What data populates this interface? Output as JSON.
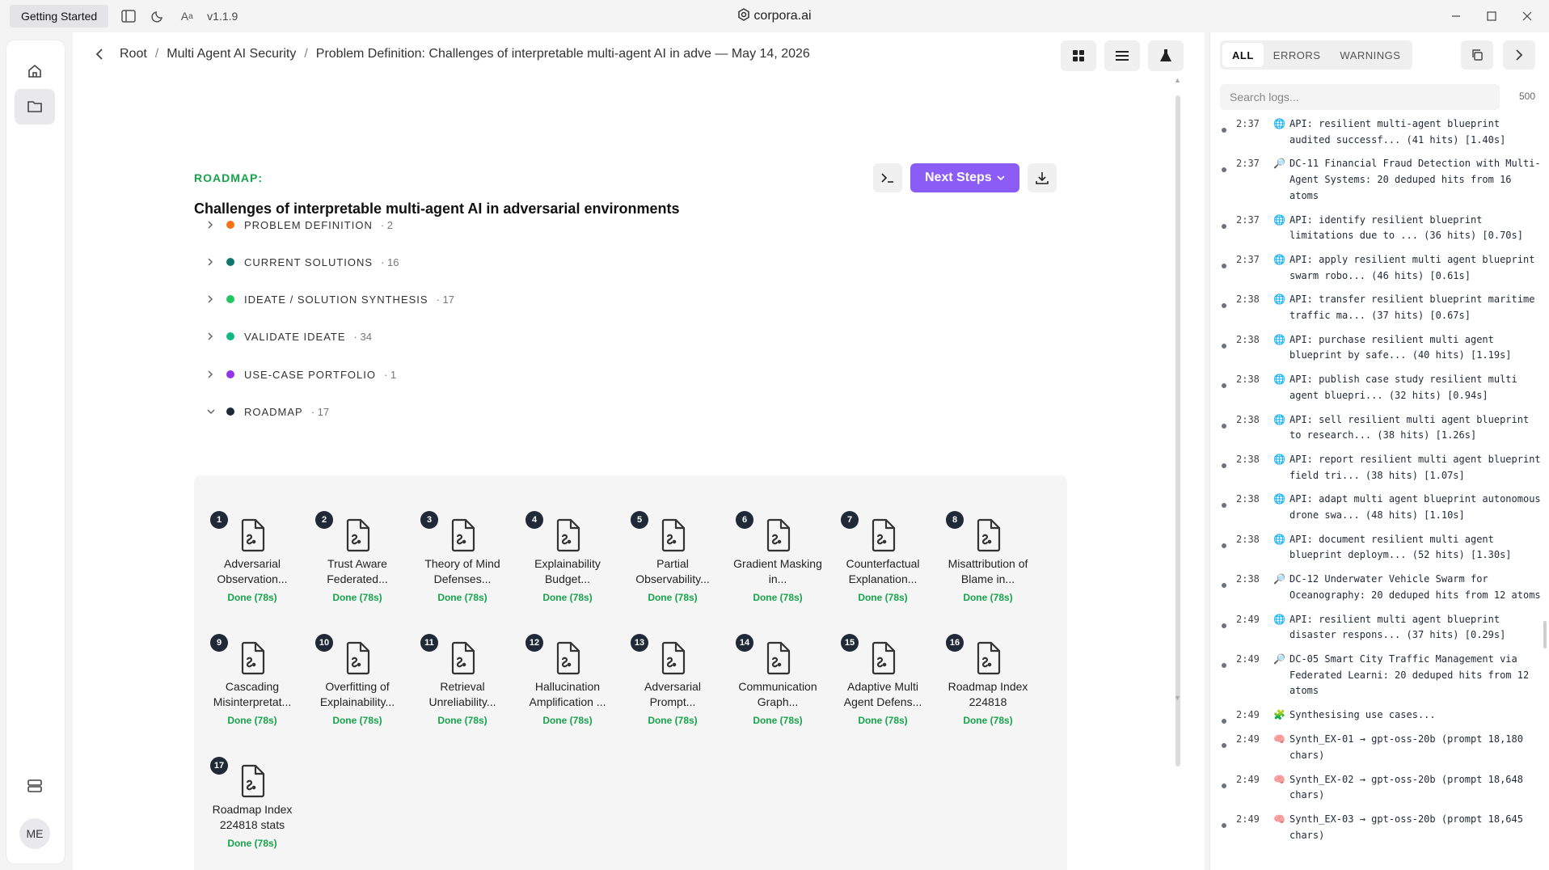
{
  "titlebar": {
    "getting_started": "Getting Started",
    "version": "v1.1.9",
    "app_title": "corpora.ai"
  },
  "rail": {
    "avatar": "ME"
  },
  "breadcrumb": {
    "items": [
      "Root",
      "Multi Agent AI Security",
      "Problem Definition: Challenges of interpretable multi-agent AI in adve — May 14, 2026"
    ]
  },
  "header": {
    "roadmap_label": "ROADMAP:",
    "roadmap_title": "Challenges of interpretable multi-agent AI in adversarial environments",
    "next_steps": "Next Steps"
  },
  "sections": [
    {
      "label": "PROBLEM DEFINITION",
      "count": "· 2",
      "color": "#f97316"
    },
    {
      "label": "CURRENT SOLUTIONS",
      "count": "· 16",
      "color": "#0f766e"
    },
    {
      "label": "IDEATE / SOLUTION SYNTHESIS",
      "count": "· 17",
      "color": "#22c55e"
    },
    {
      "label": "VALIDATE IDEATE",
      "count": "· 34",
      "color": "#10b981"
    },
    {
      "label": "USE-CASE PORTFOLIO",
      "count": "· 1",
      "color": "#9333ea"
    },
    {
      "label": "ROADMAP",
      "count": "· 17",
      "color": "#1f2937"
    }
  ],
  "tiles": [
    {
      "n": "1",
      "name": "Adversarial Observation...",
      "status": "Done (78s)"
    },
    {
      "n": "2",
      "name": "Trust Aware Federated...",
      "status": "Done (78s)"
    },
    {
      "n": "3",
      "name": "Theory of Mind Defenses...",
      "status": "Done (78s)"
    },
    {
      "n": "4",
      "name": "Explainability Budget...",
      "status": "Done (78s)"
    },
    {
      "n": "5",
      "name": "Partial Observability...",
      "status": "Done (78s)"
    },
    {
      "n": "6",
      "name": "Gradient Masking in...",
      "status": "Done (78s)"
    },
    {
      "n": "7",
      "name": "Counterfactual Explanation...",
      "status": "Done (78s)"
    },
    {
      "n": "8",
      "name": "Misattribution of Blame in...",
      "status": "Done (78s)"
    },
    {
      "n": "9",
      "name": "Cascading Misinterpretat...",
      "status": "Done (78s)"
    },
    {
      "n": "10",
      "name": "Overfitting of Explainability...",
      "status": "Done (78s)"
    },
    {
      "n": "11",
      "name": "Retrieval Unreliability...",
      "status": "Done (78s)"
    },
    {
      "n": "12",
      "name": "Hallucination Amplification ...",
      "status": "Done (78s)"
    },
    {
      "n": "13",
      "name": "Adversarial Prompt...",
      "status": "Done (78s)"
    },
    {
      "n": "14",
      "name": "Communication Graph...",
      "status": "Done (78s)"
    },
    {
      "n": "15",
      "name": "Adaptive Multi Agent Defens...",
      "status": "Done (78s)"
    },
    {
      "n": "16",
      "name": "Roadmap Index 224818",
      "status": "Done (78s)"
    },
    {
      "n": "17",
      "name": "Roadmap Index 224818 stats",
      "status": "Done (78s)"
    }
  ],
  "logs_panel": {
    "tabs": [
      "ALL",
      "ERRORS",
      "WARNINGS"
    ],
    "search_placeholder": "Search logs...",
    "limit": "500",
    "entries": [
      {
        "time": "2:37",
        "icon": "🌐",
        "text": "API: resilient multi-agent blueprint audited successf... (41 hits) [1.40s]"
      },
      {
        "time": "2:37",
        "icon": "🔎",
        "text": "DC-11 Financial Fraud Detection with Multi-Agent Systems: 20 deduped hits from 16 atoms"
      },
      {
        "time": "2:37",
        "icon": "🌐",
        "text": "API: identify resilient blueprint limitations due to ... (36 hits) [0.70s]"
      },
      {
        "time": "2:37",
        "icon": "🌐",
        "text": "API: apply resilient multi agent blueprint swarm robo... (46 hits) [0.61s]"
      },
      {
        "time": "2:38",
        "icon": "🌐",
        "text": "API: transfer resilient blueprint maritime traffic ma... (37 hits) [0.67s]"
      },
      {
        "time": "2:38",
        "icon": "🌐",
        "text": "API: purchase resilient multi agent blueprint by safe... (40 hits) [1.19s]"
      },
      {
        "time": "2:38",
        "icon": "🌐",
        "text": "API: publish case study resilient multi agent bluepri... (32 hits) [0.94s]"
      },
      {
        "time": "2:38",
        "icon": "🌐",
        "text": "API: sell resilient multi agent blueprint to research... (38 hits) [1.26s]"
      },
      {
        "time": "2:38",
        "icon": "🌐",
        "text": "API: report resilient multi agent blueprint field tri... (38 hits) [1.07s]"
      },
      {
        "time": "2:38",
        "icon": "🌐",
        "text": "API: adapt multi agent blueprint autonomous drone swa... (48 hits) [1.10s]"
      },
      {
        "time": "2:38",
        "icon": "🌐",
        "text": "API: document resilient multi agent blueprint deploym... (52 hits) [1.30s]"
      },
      {
        "time": "2:38",
        "icon": "🔎",
        "text": "DC-12 Underwater Vehicle Swarm for Oceanography: 20 deduped hits from 12 atoms"
      },
      {
        "time": "2:49",
        "icon": "🌐",
        "text": "API: resilient multi agent blueprint disaster respons... (37 hits) [0.29s]"
      },
      {
        "time": "2:49",
        "icon": "🔎",
        "text": "DC-05 Smart City Traffic Management via Federated Learni: 20 deduped hits from 12 atoms"
      },
      {
        "time": "2:49",
        "icon": "🧩",
        "text": "Synthesising use cases..."
      },
      {
        "time": "2:49",
        "icon": "🧠",
        "text": "Synth_EX-01 → gpt-oss-20b (prompt 18,180 chars)"
      },
      {
        "time": "2:49",
        "icon": "🧠",
        "text": "Synth_EX-02 → gpt-oss-20b (prompt 18,648 chars)"
      },
      {
        "time": "2:49",
        "icon": "🧠",
        "text": "Synth_EX-03 → gpt-oss-20b (prompt 18,645 chars)"
      }
    ]
  }
}
